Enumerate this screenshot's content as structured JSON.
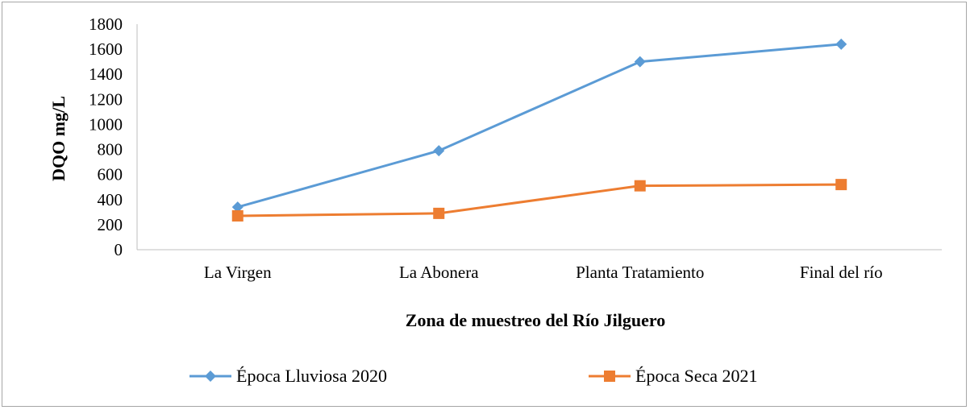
{
  "chart_data": {
    "type": "line",
    "title": "",
    "xlabel": "Zona de muestreo del Río Jilguero",
    "ylabel": "DQO  mg/L",
    "categories": [
      "La Virgen",
      "La Abonera",
      "Planta Tratamiento",
      "Final del río"
    ],
    "ylim": [
      0,
      1800
    ],
    "yticks": [
      0,
      200,
      400,
      600,
      800,
      1000,
      1200,
      1400,
      1600,
      1800
    ],
    "grid": false,
    "legend_position": "bottom",
    "series": [
      {
        "name": "Época Lluviosa 2020",
        "values": [
          340,
          790,
          1500,
          1640
        ],
        "color": "#5b9bd5",
        "marker": "diamond"
      },
      {
        "name": "Época Seca 2021",
        "values": [
          270,
          290,
          510,
          520
        ],
        "color": "#ed7d31",
        "marker": "square"
      }
    ]
  }
}
